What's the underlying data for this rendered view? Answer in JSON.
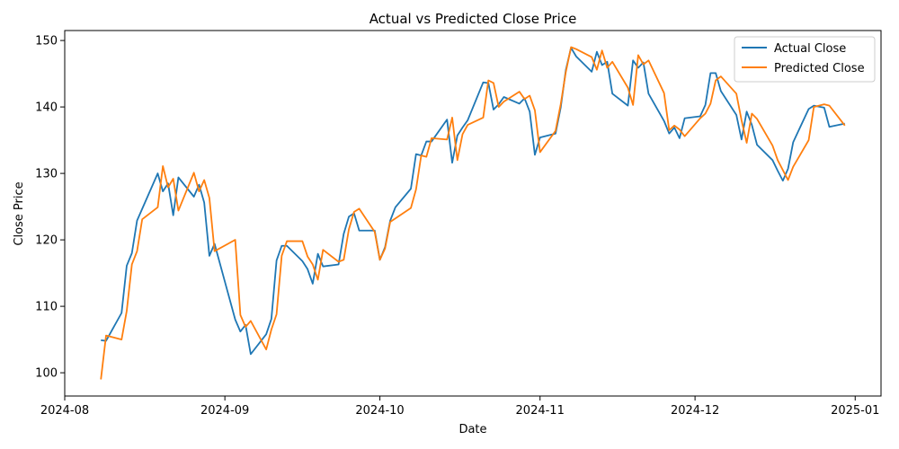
{
  "chart_data": {
    "type": "line",
    "title": "Actual vs Predicted Close Price",
    "xlabel": "Date",
    "ylabel": "Close Price",
    "xlim": [
      "2024-08-01",
      "2025-01-06"
    ],
    "ylim": [
      96.5,
      151.5
    ],
    "x_ticks": [
      "2024-08",
      "2024-09",
      "2024-10",
      "2024-11",
      "2024-12",
      "2025-01"
    ],
    "x_tick_dates": [
      "2024-08-01",
      "2024-09-01",
      "2024-10-01",
      "2024-11-01",
      "2024-12-01",
      "2025-01-01"
    ],
    "y_ticks": [
      100,
      110,
      120,
      130,
      140,
      150
    ],
    "grid": false,
    "legend_position": "top-right",
    "series": [
      {
        "name": "Actual Close",
        "color": "#1f77b4",
        "points": [
          [
            "2024-08-08",
            104.9
          ],
          [
            "2024-08-09",
            104.8
          ],
          [
            "2024-08-12",
            109.0
          ],
          [
            "2024-08-13",
            116.1
          ],
          [
            "2024-08-14",
            118.0
          ],
          [
            "2024-08-15",
            122.9
          ],
          [
            "2024-08-19",
            130.0
          ],
          [
            "2024-08-20",
            127.3
          ],
          [
            "2024-08-21",
            128.5
          ],
          [
            "2024-08-22",
            123.7
          ],
          [
            "2024-08-23",
            129.4
          ],
          [
            "2024-08-26",
            126.5
          ],
          [
            "2024-08-27",
            128.3
          ],
          [
            "2024-08-28",
            125.6
          ],
          [
            "2024-08-29",
            117.6
          ],
          [
            "2024-08-30",
            119.4
          ],
          [
            "2024-09-03",
            108.0
          ],
          [
            "2024-09-04",
            106.2
          ],
          [
            "2024-09-05",
            107.2
          ],
          [
            "2024-09-06",
            102.8
          ],
          [
            "2024-09-09",
            105.8
          ],
          [
            "2024-09-10",
            108.1
          ],
          [
            "2024-09-11",
            116.9
          ],
          [
            "2024-09-12",
            119.1
          ],
          [
            "2024-09-13",
            119.1
          ],
          [
            "2024-09-16",
            116.8
          ],
          [
            "2024-09-17",
            115.6
          ],
          [
            "2024-09-18",
            113.4
          ],
          [
            "2024-09-19",
            117.9
          ],
          [
            "2024-09-20",
            116.0
          ],
          [
            "2024-09-23",
            116.3
          ],
          [
            "2024-09-24",
            120.9
          ],
          [
            "2024-09-25",
            123.5
          ],
          [
            "2024-09-26",
            124.0
          ],
          [
            "2024-09-27",
            121.4
          ],
          [
            "2024-09-30",
            121.4
          ],
          [
            "2024-10-01",
            117.0
          ],
          [
            "2024-10-02",
            118.9
          ],
          [
            "2024-10-03",
            122.9
          ],
          [
            "2024-10-04",
            124.9
          ],
          [
            "2024-10-07",
            127.7
          ],
          [
            "2024-10-08",
            132.9
          ],
          [
            "2024-10-09",
            132.7
          ],
          [
            "2024-10-10",
            134.8
          ],
          [
            "2024-10-11",
            134.8
          ],
          [
            "2024-10-14",
            138.1
          ],
          [
            "2024-10-15",
            131.6
          ],
          [
            "2024-10-16",
            135.7
          ],
          [
            "2024-10-17",
            136.9
          ],
          [
            "2024-10-18",
            138.0
          ],
          [
            "2024-10-21",
            143.7
          ],
          [
            "2024-10-22",
            143.6
          ],
          [
            "2024-10-23",
            139.6
          ],
          [
            "2024-10-24",
            140.4
          ],
          [
            "2024-10-25",
            141.5
          ],
          [
            "2024-10-28",
            140.5
          ],
          [
            "2024-10-29",
            141.3
          ],
          [
            "2024-10-30",
            139.3
          ],
          [
            "2024-10-31",
            132.8
          ],
          [
            "2024-11-01",
            135.4
          ],
          [
            "2024-11-04",
            136.0
          ],
          [
            "2024-11-05",
            139.9
          ],
          [
            "2024-11-06",
            145.6
          ],
          [
            "2024-11-07",
            148.9
          ],
          [
            "2024-11-08",
            147.6
          ],
          [
            "2024-11-11",
            145.3
          ],
          [
            "2024-11-12",
            148.3
          ],
          [
            "2024-11-13",
            146.3
          ],
          [
            "2024-11-14",
            146.8
          ],
          [
            "2024-11-15",
            142.0
          ],
          [
            "2024-11-18",
            140.2
          ],
          [
            "2024-11-19",
            147.0
          ],
          [
            "2024-11-20",
            145.9
          ],
          [
            "2024-11-21",
            146.7
          ],
          [
            "2024-11-22",
            142.0
          ],
          [
            "2024-11-25",
            137.9
          ],
          [
            "2024-11-26",
            136.0
          ],
          [
            "2024-11-27",
            136.9
          ],
          [
            "2024-11-28",
            135.3
          ],
          [
            "2024-11-29",
            138.3
          ],
          [
            "2024-12-02",
            138.6
          ],
          [
            "2024-12-03",
            140.3
          ],
          [
            "2024-12-04",
            145.1
          ],
          [
            "2024-12-05",
            145.1
          ],
          [
            "2024-12-06",
            142.4
          ],
          [
            "2024-12-09",
            138.8
          ],
          [
            "2024-12-10",
            135.1
          ],
          [
            "2024-12-11",
            139.3
          ],
          [
            "2024-12-12",
            137.3
          ],
          [
            "2024-12-13",
            134.3
          ],
          [
            "2024-12-16",
            132.0
          ],
          [
            "2024-12-17",
            130.4
          ],
          [
            "2024-12-18",
            128.9
          ],
          [
            "2024-12-19",
            130.7
          ],
          [
            "2024-12-20",
            134.7
          ],
          [
            "2024-12-23",
            139.7
          ],
          [
            "2024-12-24",
            140.2
          ],
          [
            "2024-12-26",
            139.9
          ],
          [
            "2024-12-27",
            137.0
          ],
          [
            "2024-12-30",
            137.5
          ]
        ]
      },
      {
        "name": "Predicted Close",
        "color": "#ff7f0e",
        "points": [
          [
            "2024-08-08",
            99.0
          ],
          [
            "2024-08-09",
            105.6
          ],
          [
            "2024-08-12",
            105.0
          ],
          [
            "2024-08-13",
            109.3
          ],
          [
            "2024-08-14",
            116.3
          ],
          [
            "2024-08-15",
            118.3
          ],
          [
            "2024-08-16",
            123.1
          ],
          [
            "2024-08-19",
            124.9
          ],
          [
            "2024-08-20",
            131.1
          ],
          [
            "2024-08-21",
            127.9
          ],
          [
            "2024-08-22",
            129.2
          ],
          [
            "2024-08-23",
            124.4
          ],
          [
            "2024-08-26",
            130.1
          ],
          [
            "2024-08-27",
            127.3
          ],
          [
            "2024-08-28",
            129.0
          ],
          [
            "2024-08-29",
            126.3
          ],
          [
            "2024-08-30",
            118.3
          ],
          [
            "2024-09-03",
            120.0
          ],
          [
            "2024-09-04",
            108.7
          ],
          [
            "2024-09-05",
            106.9
          ],
          [
            "2024-09-06",
            107.8
          ],
          [
            "2024-09-09",
            103.5
          ],
          [
            "2024-09-10",
            106.5
          ],
          [
            "2024-09-11",
            108.8
          ],
          [
            "2024-09-12",
            117.6
          ],
          [
            "2024-09-13",
            119.8
          ],
          [
            "2024-09-16",
            119.8
          ],
          [
            "2024-09-17",
            117.5
          ],
          [
            "2024-09-18",
            116.3
          ],
          [
            "2024-09-19",
            114.0
          ],
          [
            "2024-09-20",
            118.5
          ],
          [
            "2024-09-23",
            116.7
          ],
          [
            "2024-09-24",
            117.0
          ],
          [
            "2024-09-25",
            121.6
          ],
          [
            "2024-09-26",
            124.2
          ],
          [
            "2024-09-27",
            124.7
          ],
          [
            "2024-09-30",
            121.2
          ],
          [
            "2024-10-01",
            117.0
          ],
          [
            "2024-10-02",
            118.7
          ],
          [
            "2024-10-03",
            122.7
          ],
          [
            "2024-10-07",
            124.8
          ],
          [
            "2024-10-08",
            127.6
          ],
          [
            "2024-10-09",
            132.7
          ],
          [
            "2024-10-10",
            132.5
          ],
          [
            "2024-10-11",
            135.3
          ],
          [
            "2024-10-14",
            135.1
          ],
          [
            "2024-10-15",
            138.4
          ],
          [
            "2024-10-16",
            132.0
          ],
          [
            "2024-10-17",
            135.9
          ],
          [
            "2024-10-18",
            137.3
          ],
          [
            "2024-10-21",
            138.4
          ],
          [
            "2024-10-22",
            144.0
          ],
          [
            "2024-10-23",
            143.6
          ],
          [
            "2024-10-24",
            140.0
          ],
          [
            "2024-10-25",
            140.8
          ],
          [
            "2024-10-28",
            142.3
          ],
          [
            "2024-10-29",
            141.2
          ],
          [
            "2024-10-30",
            141.7
          ],
          [
            "2024-10-31",
            139.5
          ],
          [
            "2024-11-01",
            133.2
          ],
          [
            "2024-11-04",
            136.4
          ],
          [
            "2024-11-05",
            140.4
          ],
          [
            "2024-11-06",
            145.3
          ],
          [
            "2024-11-07",
            149.0
          ],
          [
            "2024-11-08",
            148.7
          ],
          [
            "2024-11-11",
            147.5
          ],
          [
            "2024-11-12",
            145.6
          ],
          [
            "2024-11-13",
            148.5
          ],
          [
            "2024-11-14",
            145.9
          ],
          [
            "2024-11-15",
            146.8
          ],
          [
            "2024-11-18",
            142.9
          ],
          [
            "2024-11-19",
            140.3
          ],
          [
            "2024-11-20",
            147.8
          ],
          [
            "2024-11-21",
            146.4
          ],
          [
            "2024-11-22",
            147.0
          ],
          [
            "2024-11-25",
            142.1
          ],
          [
            "2024-11-26",
            136.5
          ],
          [
            "2024-11-27",
            137.2
          ],
          [
            "2024-11-28",
            136.6
          ],
          [
            "2024-11-29",
            135.6
          ],
          [
            "2024-12-02",
            138.3
          ],
          [
            "2024-12-03",
            139.0
          ],
          [
            "2024-12-04",
            140.5
          ],
          [
            "2024-12-05",
            144.0
          ],
          [
            "2024-12-06",
            144.6
          ],
          [
            "2024-12-09",
            142.0
          ],
          [
            "2024-12-10",
            138.0
          ],
          [
            "2024-12-11",
            134.6
          ],
          [
            "2024-12-12",
            139.0
          ],
          [
            "2024-12-13",
            138.2
          ],
          [
            "2024-12-16",
            134.2
          ],
          [
            "2024-12-17",
            132.0
          ],
          [
            "2024-12-18",
            130.5
          ],
          [
            "2024-12-19",
            129.0
          ],
          [
            "2024-12-20",
            131.0
          ],
          [
            "2024-12-23",
            135.0
          ],
          [
            "2024-12-24",
            140.0
          ],
          [
            "2024-12-26",
            140.4
          ],
          [
            "2024-12-27",
            140.2
          ],
          [
            "2024-12-30",
            137.2
          ]
        ]
      }
    ]
  }
}
